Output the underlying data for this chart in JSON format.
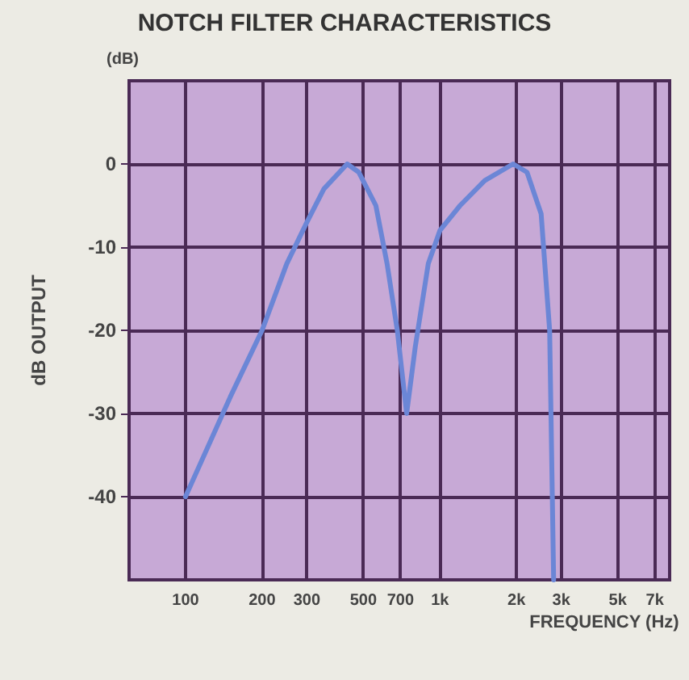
{
  "chart_data": {
    "type": "line",
    "title": "NOTCH FILTER CHARACTERISTICS",
    "xlabel": "FREQUENCY (Hz)",
    "ylabel": "dB OUTPUT",
    "annotations": [
      "(dB)"
    ],
    "x": [
      100,
      150,
      200,
      250,
      300,
      350,
      432,
      480,
      560,
      620,
      680,
      740,
      800,
      900,
      1000,
      1200,
      1500,
      1940,
      2200,
      2500,
      2700,
      2800
    ],
    "series": [
      {
        "color": "#6b86d6",
        "values": [
          -40,
          -28,
          -20,
          -12,
          -7,
          -3,
          0,
          -1,
          -5,
          -12,
          -20,
          -30,
          -22,
          -12,
          -8,
          -5,
          -2,
          0,
          -1,
          -6,
          -20,
          -50
        ]
      }
    ],
    "log": "x",
    "xlim": [
      60,
      8000
    ],
    "xticks": [
      100,
      200,
      300,
      500,
      700,
      {
        "value": 1000,
        "label": "1k"
      },
      {
        "value": 2000,
        "label": "2k"
      },
      {
        "value": 3000,
        "label": "3k"
      },
      {
        "value": 5000,
        "label": "5k"
      },
      {
        "value": 7000,
        "label": "7k"
      }
    ],
    "ylim": [
      -50,
      10
    ],
    "yticks": [
      0,
      -10,
      -20,
      -30,
      -40
    ],
    "grid": true,
    "marker": "none",
    "line_style": "solid"
  }
}
